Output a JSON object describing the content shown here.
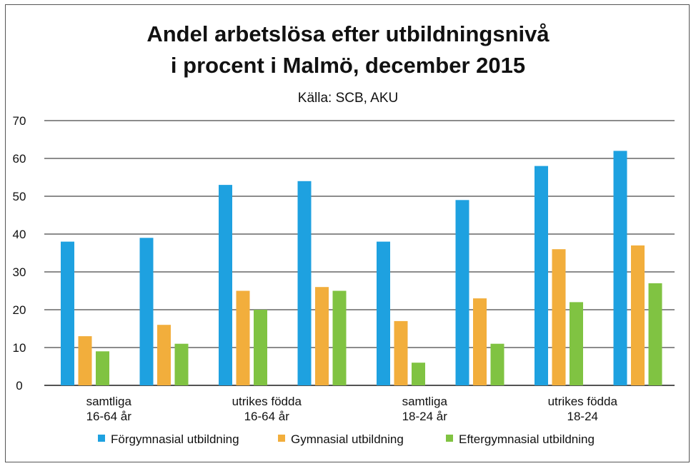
{
  "chart_data": {
    "type": "bar",
    "title": [
      "Andel arbetslösa efter utbildningsnivå",
      "i procent i Malmö, december 2015"
    ],
    "subtitle": "Källa: SCB, AKU",
    "xlabel": "",
    "ylabel": "",
    "ylim": [
      0,
      70
    ],
    "yticks": [
      0,
      10,
      20,
      30,
      40,
      50,
      60,
      70
    ],
    "grid": true,
    "legend_position": "bottom",
    "groups": 8,
    "category_labels": [
      {
        "lines": [
          "samtliga",
          "16-64 år"
        ],
        "center_group": 0
      },
      {
        "lines": [
          "utrikes födda",
          "16-64 år"
        ],
        "center_group": 2
      },
      {
        "lines": [
          "samtliga",
          "18-24 år"
        ],
        "center_group": 4
      },
      {
        "lines": [
          "utrikes födda",
          "18-24"
        ],
        "center_group": 6
      }
    ],
    "series": [
      {
        "name": "Förgymnasial utbildning",
        "color": "#1ea1e0",
        "values": [
          38,
          39,
          53,
          54,
          38,
          49,
          58,
          62
        ]
      },
      {
        "name": "Gymnasial utbildning",
        "color": "#f2ae3c",
        "values": [
          13,
          16,
          25,
          26,
          17,
          23,
          36,
          37
        ]
      },
      {
        "name": "Eftergymnasial utbildning",
        "color": "#80c342",
        "values": [
          9,
          11,
          20,
          25,
          6,
          11,
          22,
          27
        ]
      }
    ]
  }
}
